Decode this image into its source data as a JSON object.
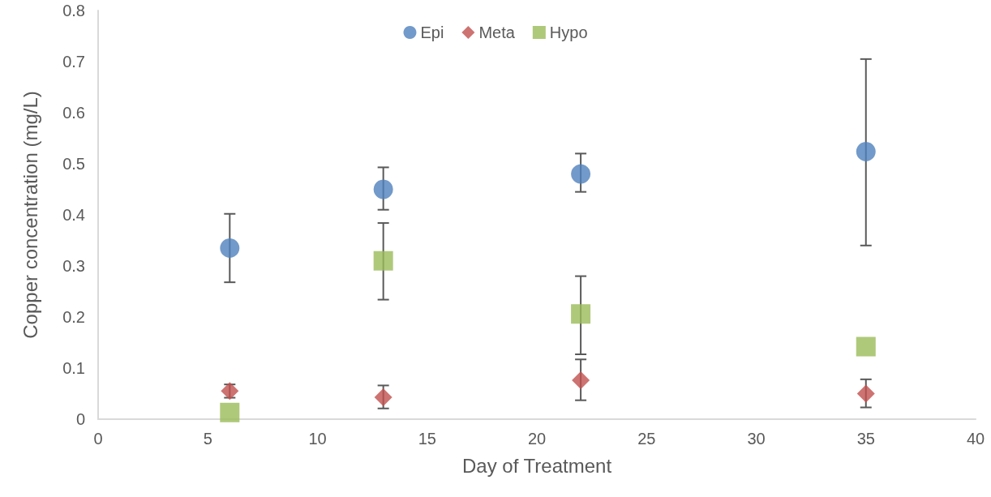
{
  "chart_data": {
    "type": "scatter",
    "xlabel": "Day of Treatment",
    "ylabel": "Copper concentration (mg/L)",
    "xlim": [
      0,
      40
    ],
    "xticks": [
      0,
      5,
      10,
      15,
      20,
      25,
      30,
      35,
      40
    ],
    "ylim": [
      0,
      0.8
    ],
    "yticks": [
      0,
      0.1,
      0.2,
      0.3,
      0.4,
      0.5,
      0.6,
      0.7,
      0.8
    ],
    "grid": false,
    "legend": "top",
    "x": [
      6,
      13,
      22,
      35
    ],
    "series": [
      {
        "name": "Epi",
        "color": "#4f81bd",
        "marker": "circle",
        "values": [
          0.335,
          0.45,
          0.48,
          0.524
        ],
        "errors": [
          [
            0.268,
            0.402
          ],
          [
            0.41,
            0.493
          ],
          [
            0.445,
            0.52
          ],
          [
            0.34,
            0.705
          ]
        ]
      },
      {
        "name": "Meta",
        "color": "#c0504d",
        "marker": "diamond",
        "values": [
          0.055,
          0.043,
          0.076,
          0.05
        ],
        "errors": [
          [
            0.042,
            0.068
          ],
          [
            0.021,
            0.066
          ],
          [
            0.037,
            0.117
          ],
          [
            0.023,
            0.078
          ]
        ]
      },
      {
        "name": "Hypo",
        "color": "#9bbb59",
        "marker": "square",
        "values": [
          0.013,
          0.31,
          0.206,
          0.142
        ],
        "errors": [
          null,
          [
            0.234,
            0.384
          ],
          [
            0.127,
            0.28
          ],
          null
        ]
      }
    ]
  }
}
